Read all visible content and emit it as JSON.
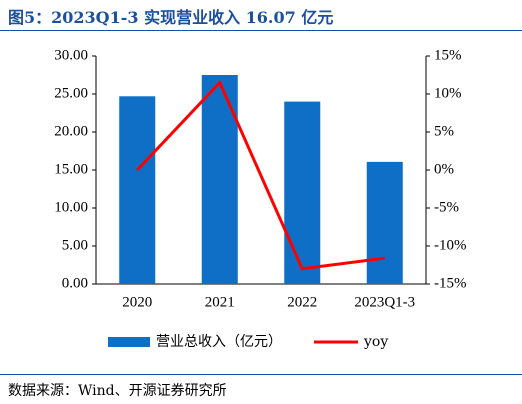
{
  "title": "图5：2023Q1-3 实现营业收入 16.07 亿元",
  "source": "数据来源：Wind、开源证券研究所",
  "colors": {
    "bar": "#0f6fc6",
    "line": "#ff0000",
    "title": "#1b4fa0"
  },
  "chart_data": {
    "type": "bar",
    "categories": [
      "2020",
      "2021",
      "2022",
      "2023Q1-3"
    ],
    "series": [
      {
        "name": "营业总收入（亿元）",
        "type": "bar",
        "axis": "left",
        "values": [
          24.7,
          27.5,
          24.0,
          16.07
        ]
      },
      {
        "name": "yoy",
        "type": "line",
        "axis": "right",
        "values": [
          0.0,
          11.5,
          -13.0,
          -11.6
        ]
      }
    ],
    "y_left": {
      "min": 0,
      "max": 30,
      "ticks": [
        "0.00",
        "5.00",
        "10.00",
        "15.00",
        "20.00",
        "25.00",
        "30.00"
      ]
    },
    "y_right": {
      "min": -15,
      "max": 15,
      "ticks": [
        "-15%",
        "-10%",
        "-5%",
        "0%",
        "5%",
        "10%",
        "15%"
      ]
    },
    "legend_position": "bottom",
    "grid": false
  }
}
